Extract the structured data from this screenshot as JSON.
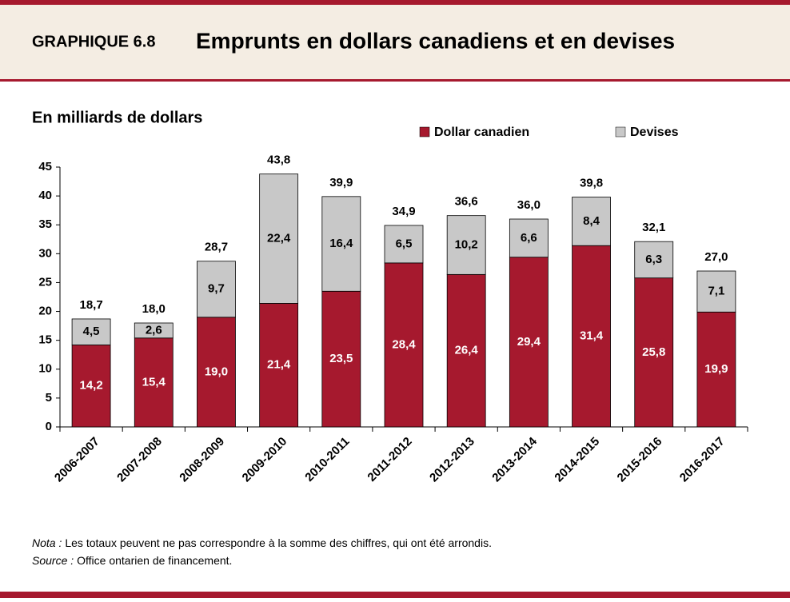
{
  "header": {
    "label": "GRAPHIQUE 6.8",
    "title": "Emprunts en dollars canadiens et en devises"
  },
  "chart_data": {
    "type": "stacked_bar",
    "y_label": "En milliards de dollars",
    "categories": [
      "2006-2007",
      "2007-2008",
      "2008-2009",
      "2009-2010",
      "2010-2011",
      "2011-2012",
      "2012-2013",
      "2013-2014",
      "2014-2015",
      "2015-2016",
      "2016-2017"
    ],
    "series": [
      {
        "name": "Dollar canadien",
        "color": "#a6192e",
        "label_color": "#ffffff",
        "values": [
          14.2,
          15.4,
          19.0,
          21.4,
          23.5,
          28.4,
          26.4,
          29.4,
          31.4,
          25.8,
          19.9
        ],
        "value_labels": [
          "14,2",
          "15,4",
          "19,0",
          "21,4",
          "23,5",
          "28,4",
          "26,4",
          "29,4",
          "31,4",
          "25,8",
          "19,9"
        ]
      },
      {
        "name": "Devises",
        "color": "#c8c8c8",
        "label_color": "#000000",
        "values": [
          4.5,
          2.6,
          9.7,
          22.4,
          16.4,
          6.5,
          10.2,
          6.6,
          8.4,
          6.3,
          7.1
        ],
        "value_labels": [
          "4,5",
          "2,6",
          "9,7",
          "22,4",
          "16,4",
          "6,5",
          "10,2",
          "6,6",
          "8,4",
          "6,3",
          "7,1"
        ]
      }
    ],
    "totals": [
      18.7,
      18.0,
      28.7,
      43.8,
      39.9,
      34.9,
      36.6,
      36.0,
      39.8,
      32.1,
      27.0
    ],
    "total_labels": [
      "18,7",
      "18,0",
      "28,7",
      "43,8",
      "39,9",
      "34,9",
      "36,6",
      "36,0",
      "39,8",
      "32,1",
      "27,0"
    ],
    "ylim": [
      0,
      45
    ],
    "yticks": [
      0,
      5,
      10,
      15,
      20,
      25,
      30,
      35,
      40,
      45
    ],
    "grid": false,
    "legend": "top"
  },
  "notes": [
    {
      "label": "Nota :",
      "text": "Les totaux peuvent ne pas correspondre à la somme des chiffres,  qui ont été arrondis."
    },
    {
      "label": "Source :",
      "text": "Office  ontarien de financement."
    }
  ]
}
